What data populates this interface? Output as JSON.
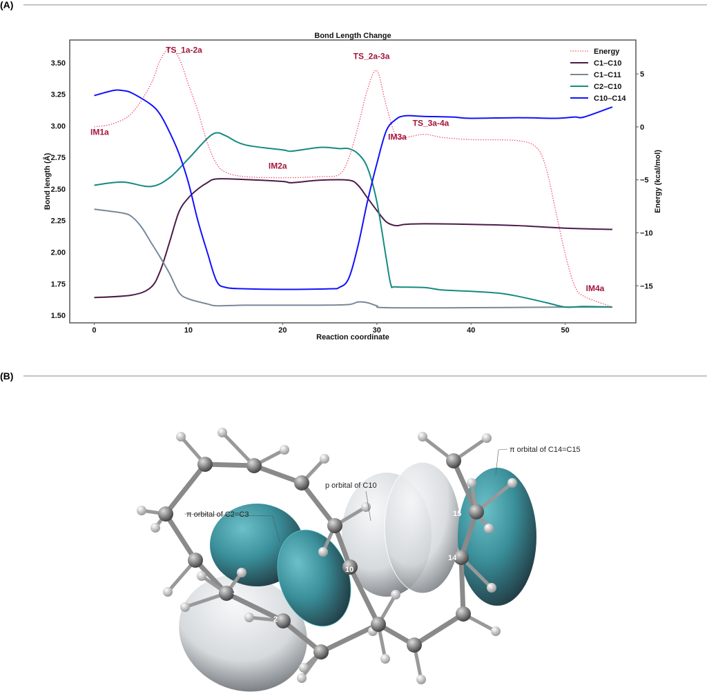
{
  "panels": {
    "a": "(A)",
    "b": "(B)"
  },
  "chart_data": {
    "type": "line",
    "title": "Bond Length Change",
    "xlabel": "Reaction coordinate",
    "ylabel": "Bond length (Å)",
    "y2label": "Energy (kcal/mol)",
    "xlim": [
      -2.6,
      57.5
    ],
    "ylim": [
      1.44,
      3.68
    ],
    "y2lim": [
      -18.5,
      8.2
    ],
    "xticks": [
      0,
      10,
      20,
      30,
      40,
      50
    ],
    "yticks": [
      "1.50",
      "1.75",
      "2.00",
      "2.25",
      "2.50",
      "2.75",
      "3.00",
      "3.25",
      "3.50"
    ],
    "y2ticks": [
      5,
      0,
      -5,
      -10,
      -15
    ],
    "grid": false,
    "legend_position": "top-right",
    "series": [
      {
        "name": "Energy",
        "axis": "right",
        "style": "dotted",
        "color": "#f0506e",
        "points": [
          [
            0,
            0
          ],
          [
            2,
            0.3
          ],
          [
            4,
            1.3
          ],
          [
            6,
            4
          ],
          [
            7,
            6.3
          ],
          [
            8,
            7.4
          ],
          [
            9,
            6.5
          ],
          [
            10,
            4
          ],
          [
            11,
            1.5
          ],
          [
            12,
            -1.5
          ],
          [
            13,
            -3.5
          ],
          [
            14,
            -4.3
          ],
          [
            16,
            -4.7
          ],
          [
            20,
            -4.8
          ],
          [
            24,
            -4.7
          ],
          [
            26,
            -4.5
          ],
          [
            27,
            -3
          ],
          [
            28,
            0
          ],
          [
            29,
            3.5
          ],
          [
            30,
            5.3
          ],
          [
            31,
            2
          ],
          [
            32,
            -0.8
          ],
          [
            33,
            -1
          ],
          [
            35,
            -0.7
          ],
          [
            37,
            -1
          ],
          [
            40,
            -1.2
          ],
          [
            45,
            -1.3
          ],
          [
            47,
            -2
          ],
          [
            48,
            -4
          ],
          [
            49,
            -8
          ],
          [
            50,
            -12
          ],
          [
            51,
            -15
          ],
          [
            52,
            -16
          ],
          [
            55,
            -17
          ]
        ]
      },
      {
        "name": "C1–C10",
        "axis": "left",
        "style": "solid",
        "color": "#4a1a48",
        "points": [
          [
            0,
            1.64
          ],
          [
            4,
            1.66
          ],
          [
            6,
            1.72
          ],
          [
            7,
            1.85
          ],
          [
            8,
            2.08
          ],
          [
            9,
            2.32
          ],
          [
            10,
            2.43
          ],
          [
            11,
            2.5
          ],
          [
            12,
            2.55
          ],
          [
            13,
            2.58
          ],
          [
            16,
            2.575
          ],
          [
            20,
            2.56
          ],
          [
            21,
            2.55
          ],
          [
            24,
            2.57
          ],
          [
            27,
            2.57
          ],
          [
            28,
            2.53
          ],
          [
            29,
            2.43
          ],
          [
            30,
            2.33
          ],
          [
            31,
            2.24
          ],
          [
            32,
            2.21
          ],
          [
            33,
            2.22
          ],
          [
            35,
            2.225
          ],
          [
            40,
            2.22
          ],
          [
            45,
            2.21
          ],
          [
            50,
            2.19
          ],
          [
            55,
            2.18
          ]
        ]
      },
      {
        "name": "C1–C11",
        "axis": "left",
        "style": "solid",
        "color": "#778899",
        "points": [
          [
            0,
            2.34
          ],
          [
            3,
            2.31
          ],
          [
            4,
            2.28
          ],
          [
            5,
            2.2
          ],
          [
            6,
            2.08
          ],
          [
            7,
            1.96
          ],
          [
            8,
            1.83
          ],
          [
            9,
            1.68
          ],
          [
            10,
            1.63
          ],
          [
            12,
            1.59
          ],
          [
            13,
            1.575
          ],
          [
            16,
            1.58
          ],
          [
            20,
            1.58
          ],
          [
            24,
            1.58
          ],
          [
            27,
            1.585
          ],
          [
            28,
            1.605
          ],
          [
            29,
            1.6
          ],
          [
            30,
            1.575
          ],
          [
            31,
            1.56
          ],
          [
            40,
            1.56
          ],
          [
            50,
            1.565
          ],
          [
            55,
            1.565
          ]
        ]
      },
      {
        "name": "C2–C10",
        "axis": "left",
        "style": "solid",
        "color": "#138a80",
        "points": [
          [
            0,
            2.53
          ],
          [
            3,
            2.555
          ],
          [
            6,
            2.52
          ],
          [
            8,
            2.59
          ],
          [
            10,
            2.74
          ],
          [
            12,
            2.9
          ],
          [
            13,
            2.945
          ],
          [
            14,
            2.92
          ],
          [
            16,
            2.85
          ],
          [
            20,
            2.81
          ],
          [
            21,
            2.8
          ],
          [
            24,
            2.83
          ],
          [
            26,
            2.82
          ],
          [
            27,
            2.82
          ],
          [
            28,
            2.78
          ],
          [
            29,
            2.67
          ],
          [
            30,
            2.4
          ],
          [
            31,
            1.95
          ],
          [
            31.5,
            1.74
          ],
          [
            32,
            1.725
          ],
          [
            35,
            1.72
          ],
          [
            37,
            1.7
          ],
          [
            40,
            1.69
          ],
          [
            43,
            1.675
          ],
          [
            45,
            1.65
          ],
          [
            48,
            1.6
          ],
          [
            50,
            1.565
          ],
          [
            52,
            1.57
          ],
          [
            55,
            1.565
          ]
        ]
      },
      {
        "name": "C10–C14",
        "axis": "left",
        "style": "solid",
        "color": "#1010ff",
        "points": [
          [
            0,
            3.24
          ],
          [
            2,
            3.28
          ],
          [
            3,
            3.28
          ],
          [
            4,
            3.26
          ],
          [
            6,
            3.17
          ],
          [
            7,
            3.09
          ],
          [
            8,
            2.95
          ],
          [
            9,
            2.78
          ],
          [
            10,
            2.55
          ],
          [
            11,
            2.25
          ],
          [
            12,
            2.0
          ],
          [
            13,
            1.77
          ],
          [
            14,
            1.72
          ],
          [
            16,
            1.71
          ],
          [
            20,
            1.705
          ],
          [
            25,
            1.71
          ],
          [
            26,
            1.72
          ],
          [
            27,
            1.79
          ],
          [
            28,
            2.05
          ],
          [
            29,
            2.4
          ],
          [
            30,
            2.7
          ],
          [
            31,
            2.96
          ],
          [
            32,
            3.05
          ],
          [
            33,
            3.08
          ],
          [
            35,
            3.075
          ],
          [
            38,
            3.07
          ],
          [
            40,
            3.06
          ],
          [
            45,
            3.065
          ],
          [
            49,
            3.06
          ],
          [
            51,
            3.07
          ],
          [
            52,
            3.07
          ],
          [
            55,
            3.15
          ]
        ]
      }
    ],
    "annotations": [
      {
        "text": "TS_1a-2a",
        "x": 7.6,
        "y": 3.58
      },
      {
        "text": "IM1a",
        "x": -0.4,
        "y": 2.93
      },
      {
        "text": "IM2a",
        "x": 18.5,
        "y": 2.66
      },
      {
        "text": "TS_2a-3a",
        "x": 27.5,
        "y": 3.53
      },
      {
        "text": "IM3a",
        "x": 31.2,
        "y": 2.89
      },
      {
        "text": "TS_3a-4a",
        "x": 33.8,
        "y": 3.0
      },
      {
        "text": "IM4a",
        "x": 52.2,
        "y": 1.69
      }
    ],
    "annotation_color": "#a3153a"
  },
  "molecule": {
    "labels": [
      "π orbital of C2=C3",
      "p orbital of C10",
      "π orbital of C14=C15"
    ],
    "atom_numbers": [
      "3",
      "2",
      "10",
      "14",
      "15"
    ],
    "colors": {
      "positive_lobe": "#3a8f9a",
      "negative_lobe": "#d9dde0",
      "carbon": "#777",
      "hydrogen": "#f2f2f2"
    }
  }
}
